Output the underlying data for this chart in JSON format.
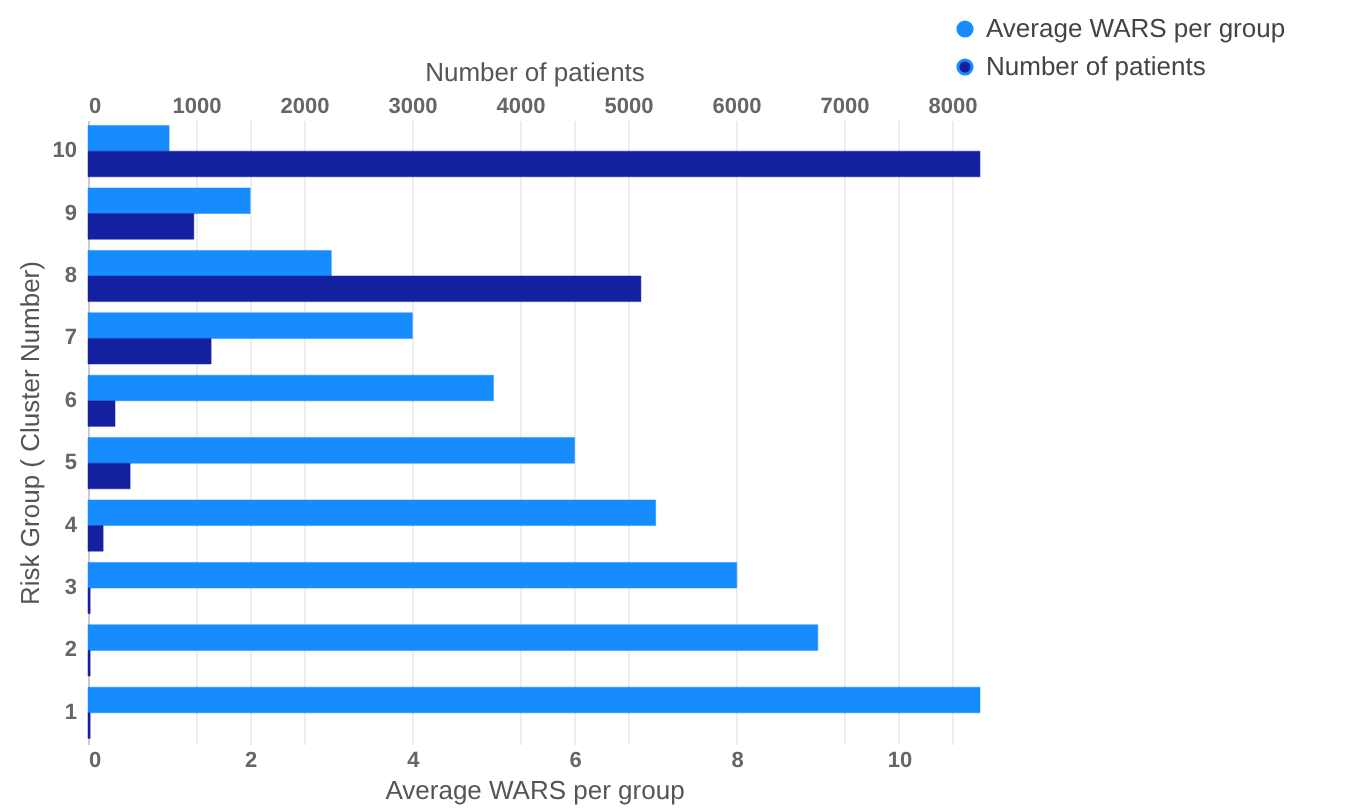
{
  "chart_data": {
    "type": "bar",
    "orientation": "horizontal",
    "categories": [
      "10",
      "9",
      "8",
      "7",
      "6",
      "5",
      "4",
      "3",
      "2",
      "1"
    ],
    "series": [
      {
        "name": "Average WARS per group",
        "color": "#168cff",
        "values": [
          1,
          2,
          3,
          4,
          5,
          6,
          7,
          8,
          9,
          11
        ]
      },
      {
        "name": "Number of patients",
        "color": "#1320a0",
        "axis": "x2",
        "values": [
          8260,
          980,
          5120,
          1140,
          250,
          390,
          140,
          20,
          20,
          20
        ]
      }
    ],
    "xlabel": "Average WARS per group",
    "x2label": "Number of patients",
    "ylabel": "Risk Group ( Cluster Number)",
    "xlim": [
      0,
      11
    ],
    "xticks": [
      0,
      2,
      4,
      6,
      8,
      10
    ],
    "x2lim": [
      0,
      8260
    ],
    "x2ticks": [
      0,
      1000,
      2000,
      3000,
      4000,
      5000,
      6000,
      7000,
      8000
    ],
    "grid": true,
    "legend": "top right"
  }
}
